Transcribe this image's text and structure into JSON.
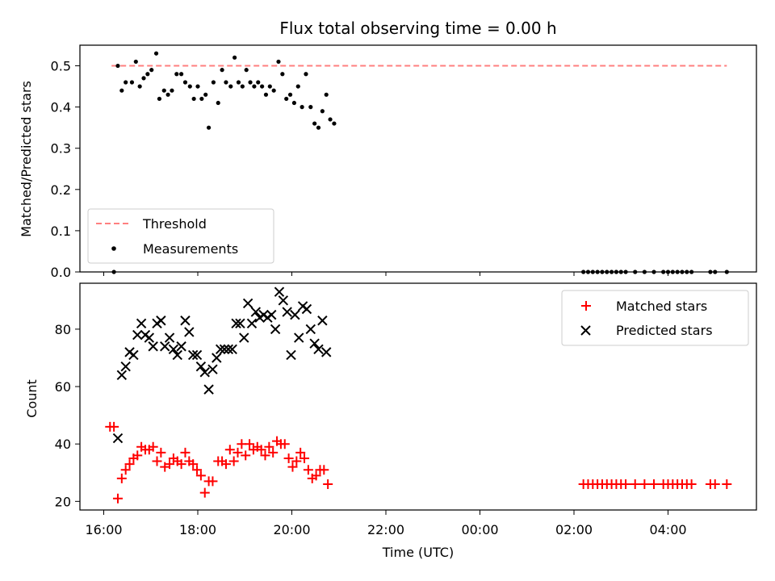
{
  "chart_data": [
    {
      "type": "scatter",
      "title": "Flux total observing time = 0.00 h",
      "ylabel": "Matched/Predicted stars",
      "xlabel": "",
      "ylim": [
        0,
        0.55
      ],
      "yticks": [
        0.0,
        0.1,
        0.2,
        0.3,
        0.4,
        0.5
      ],
      "ytick_labels": [
        "0.0",
        "0.1",
        "0.2",
        "0.3",
        "0.4",
        "0.5"
      ],
      "legend": {
        "position": "lower-left",
        "entries": [
          "Threshold",
          "Measurements"
        ]
      },
      "threshold": {
        "name": "Threshold",
        "value": 0.5,
        "x": [
          "16:10",
          "05:15"
        ],
        "color": "#ff7f7f"
      },
      "series": [
        {
          "name": "Measurements",
          "marker": "dot",
          "color": "#000000",
          "points": [
            [
              "16:13",
              0.0
            ],
            [
              "16:18",
              0.5
            ],
            [
              "16:23",
              0.44
            ],
            [
              "16:28",
              0.46
            ],
            [
              "16:36",
              0.46
            ],
            [
              "16:41",
              0.51
            ],
            [
              "16:46",
              0.45
            ],
            [
              "16:51",
              0.47
            ],
            [
              "16:56",
              0.48
            ],
            [
              "17:01",
              0.49
            ],
            [
              "17:07",
              0.53
            ],
            [
              "17:11",
              0.42
            ],
            [
              "17:17",
              0.44
            ],
            [
              "17:22",
              0.43
            ],
            [
              "17:27",
              0.44
            ],
            [
              "17:33",
              0.48
            ],
            [
              "17:39",
              0.48
            ],
            [
              "17:44",
              0.46
            ],
            [
              "17:50",
              0.45
            ],
            [
              "17:55",
              0.42
            ],
            [
              "18:00",
              0.45
            ],
            [
              "18:05",
              0.42
            ],
            [
              "18:10",
              0.43
            ],
            [
              "18:14",
              0.35
            ],
            [
              "18:20",
              0.46
            ],
            [
              "18:26",
              0.41
            ],
            [
              "18:31",
              0.49
            ],
            [
              "18:36",
              0.46
            ],
            [
              "18:42",
              0.45
            ],
            [
              "18:47",
              0.52
            ],
            [
              "18:52",
              0.46
            ],
            [
              "18:57",
              0.45
            ],
            [
              "19:02",
              0.49
            ],
            [
              "19:07",
              0.46
            ],
            [
              "19:12",
              0.45
            ],
            [
              "19:17",
              0.46
            ],
            [
              "19:22",
              0.45
            ],
            [
              "19:27",
              0.43
            ],
            [
              "19:32",
              0.45
            ],
            [
              "19:37",
              0.44
            ],
            [
              "19:43",
              0.51
            ],
            [
              "19:48",
              0.48
            ],
            [
              "19:53",
              0.42
            ],
            [
              "19:58",
              0.43
            ],
            [
              "20:03",
              0.41
            ],
            [
              "20:08",
              0.45
            ],
            [
              "20:13",
              0.4
            ],
            [
              "20:18",
              0.48
            ],
            [
              "20:24",
              0.4
            ],
            [
              "20:29",
              0.36
            ],
            [
              "20:34",
              0.35
            ],
            [
              "20:39",
              0.39
            ],
            [
              "20:44",
              0.43
            ],
            [
              "20:49",
              0.37
            ],
            [
              "20:54",
              0.36
            ],
            [
              "02:12",
              0.0
            ],
            [
              "02:18",
              0.0
            ],
            [
              "02:24",
              0.0
            ],
            [
              "02:30",
              0.0
            ],
            [
              "02:36",
              0.0
            ],
            [
              "02:42",
              0.0
            ],
            [
              "02:48",
              0.0
            ],
            [
              "02:54",
              0.0
            ],
            [
              "03:00",
              0.0
            ],
            [
              "03:06",
              0.0
            ],
            [
              "03:18",
              0.0
            ],
            [
              "03:30",
              0.0
            ],
            [
              "03:42",
              0.0
            ],
            [
              "03:54",
              0.0
            ],
            [
              "04:00",
              0.0
            ],
            [
              "04:06",
              0.0
            ],
            [
              "04:12",
              0.0
            ],
            [
              "04:18",
              0.0
            ],
            [
              "04:24",
              0.0
            ],
            [
              "04:30",
              0.0
            ],
            [
              "04:54",
              0.0
            ],
            [
              "05:00",
              0.0
            ],
            [
              "05:15",
              0.0
            ]
          ]
        }
      ]
    },
    {
      "type": "scatter",
      "title": "",
      "ylabel": "Count",
      "xlabel": "Time (UTC)",
      "ylim": [
        17,
        96
      ],
      "yticks": [
        20,
        40,
        60,
        80
      ],
      "ytick_labels": [
        "20",
        "40",
        "60",
        "80"
      ],
      "xticks": [
        "16:00",
        "18:00",
        "20:00",
        "22:00",
        "00:00",
        "02:00",
        "04:00"
      ],
      "xtick_labels": [
        "16:00",
        "18:00",
        "20:00",
        "22:00",
        "00:00",
        "02:00",
        "04:00"
      ],
      "legend": {
        "position": "upper-right",
        "entries": [
          "Matched stars",
          "Predicted stars"
        ]
      },
      "series": [
        {
          "name": "Matched stars",
          "marker": "plus",
          "color": "#ff0000",
          "points": [
            [
              "16:08",
              46
            ],
            [
              "16:13",
              46
            ],
            [
              "16:18",
              21
            ],
            [
              "16:23",
              28
            ],
            [
              "16:28",
              31
            ],
            [
              "16:33",
              33
            ],
            [
              "16:38",
              35
            ],
            [
              "16:43",
              36
            ],
            [
              "16:48",
              39
            ],
            [
              "16:53",
              38
            ],
            [
              "16:58",
              38
            ],
            [
              "17:03",
              39
            ],
            [
              "17:08",
              34
            ],
            [
              "17:13",
              37
            ],
            [
              "17:18",
              32
            ],
            [
              "17:24",
              33
            ],
            [
              "17:29",
              35
            ],
            [
              "17:34",
              34
            ],
            [
              "17:39",
              33
            ],
            [
              "17:44",
              37
            ],
            [
              "17:49",
              34
            ],
            [
              "17:54",
              33
            ],
            [
              "17:59",
              31
            ],
            [
              "18:04",
              29
            ],
            [
              "18:09",
              23
            ],
            [
              "18:14",
              27
            ],
            [
              "18:19",
              27
            ],
            [
              "18:26",
              34
            ],
            [
              "18:31",
              34
            ],
            [
              "18:36",
              33
            ],
            [
              "18:41",
              38
            ],
            [
              "18:46",
              34
            ],
            [
              "18:51",
              37
            ],
            [
              "18:56",
              40
            ],
            [
              "19:01",
              36
            ],
            [
              "19:06",
              40
            ],
            [
              "19:11",
              38
            ],
            [
              "19:16",
              39
            ],
            [
              "19:21",
              38
            ],
            [
              "19:26",
              36
            ],
            [
              "19:31",
              39
            ],
            [
              "19:36",
              37
            ],
            [
              "19:41",
              41
            ],
            [
              "19:46",
              40
            ],
            [
              "19:51",
              40
            ],
            [
              "19:56",
              35
            ],
            [
              "20:01",
              32
            ],
            [
              "20:06",
              34
            ],
            [
              "20:11",
              37
            ],
            [
              "20:16",
              35
            ],
            [
              "20:21",
              31
            ],
            [
              "20:26",
              28
            ],
            [
              "20:31",
              29
            ],
            [
              "20:36",
              31
            ],
            [
              "20:41",
              31
            ],
            [
              "20:46",
              26
            ],
            [
              "02:12",
              26
            ],
            [
              "02:18",
              26
            ],
            [
              "02:24",
              26
            ],
            [
              "02:30",
              26
            ],
            [
              "02:36",
              26
            ],
            [
              "02:42",
              26
            ],
            [
              "02:48",
              26
            ],
            [
              "02:54",
              26
            ],
            [
              "03:00",
              26
            ],
            [
              "03:06",
              26
            ],
            [
              "03:18",
              26
            ],
            [
              "03:30",
              26
            ],
            [
              "03:42",
              26
            ],
            [
              "03:54",
              26
            ],
            [
              "04:00",
              26
            ],
            [
              "04:06",
              26
            ],
            [
              "04:12",
              26
            ],
            [
              "04:18",
              26
            ],
            [
              "04:24",
              26
            ],
            [
              "04:30",
              26
            ],
            [
              "04:54",
              26
            ],
            [
              "05:00",
              26
            ],
            [
              "05:15",
              26
            ]
          ]
        },
        {
          "name": "Predicted stars",
          "marker": "x",
          "color": "#000000",
          "points": [
            [
              "16:18",
              42
            ],
            [
              "16:23",
              64
            ],
            [
              "16:28",
              67
            ],
            [
              "16:33",
              72
            ],
            [
              "16:38",
              71
            ],
            [
              "16:43",
              78
            ],
            [
              "16:48",
              82
            ],
            [
              "16:53",
              78
            ],
            [
              "16:58",
              77
            ],
            [
              "17:03",
              74
            ],
            [
              "17:08",
              82
            ],
            [
              "17:13",
              83
            ],
            [
              "17:18",
              74
            ],
            [
              "17:24",
              77
            ],
            [
              "17:29",
              73
            ],
            [
              "17:34",
              71
            ],
            [
              "17:39",
              74
            ],
            [
              "17:44",
              83
            ],
            [
              "17:49",
              79
            ],
            [
              "17:54",
              71
            ],
            [
              "17:59",
              71
            ],
            [
              "18:04",
              67
            ],
            [
              "18:09",
              65
            ],
            [
              "18:14",
              59
            ],
            [
              "18:19",
              66
            ],
            [
              "18:24",
              70
            ],
            [
              "18:29",
              73
            ],
            [
              "18:34",
              73
            ],
            [
              "18:39",
              73
            ],
            [
              "18:44",
              73
            ],
            [
              "18:49",
              82
            ],
            [
              "18:54",
              82
            ],
            [
              "18:59",
              77
            ],
            [
              "19:04",
              89
            ],
            [
              "19:09",
              82
            ],
            [
              "19:14",
              86
            ],
            [
              "19:19",
              84
            ],
            [
              "19:24",
              85
            ],
            [
              "19:29",
              84
            ],
            [
              "19:34",
              85
            ],
            [
              "19:39",
              80
            ],
            [
              "19:44",
              93
            ],
            [
              "19:49",
              90
            ],
            [
              "19:54",
              86
            ],
            [
              "19:59",
              71
            ],
            [
              "20:04",
              85
            ],
            [
              "20:09",
              77
            ],
            [
              "20:14",
              88
            ],
            [
              "20:19",
              87
            ],
            [
              "20:24",
              80
            ],
            [
              "20:29",
              75
            ],
            [
              "20:34",
              73
            ],
            [
              "20:39",
              83
            ],
            [
              "20:44",
              72
            ]
          ]
        }
      ]
    }
  ]
}
